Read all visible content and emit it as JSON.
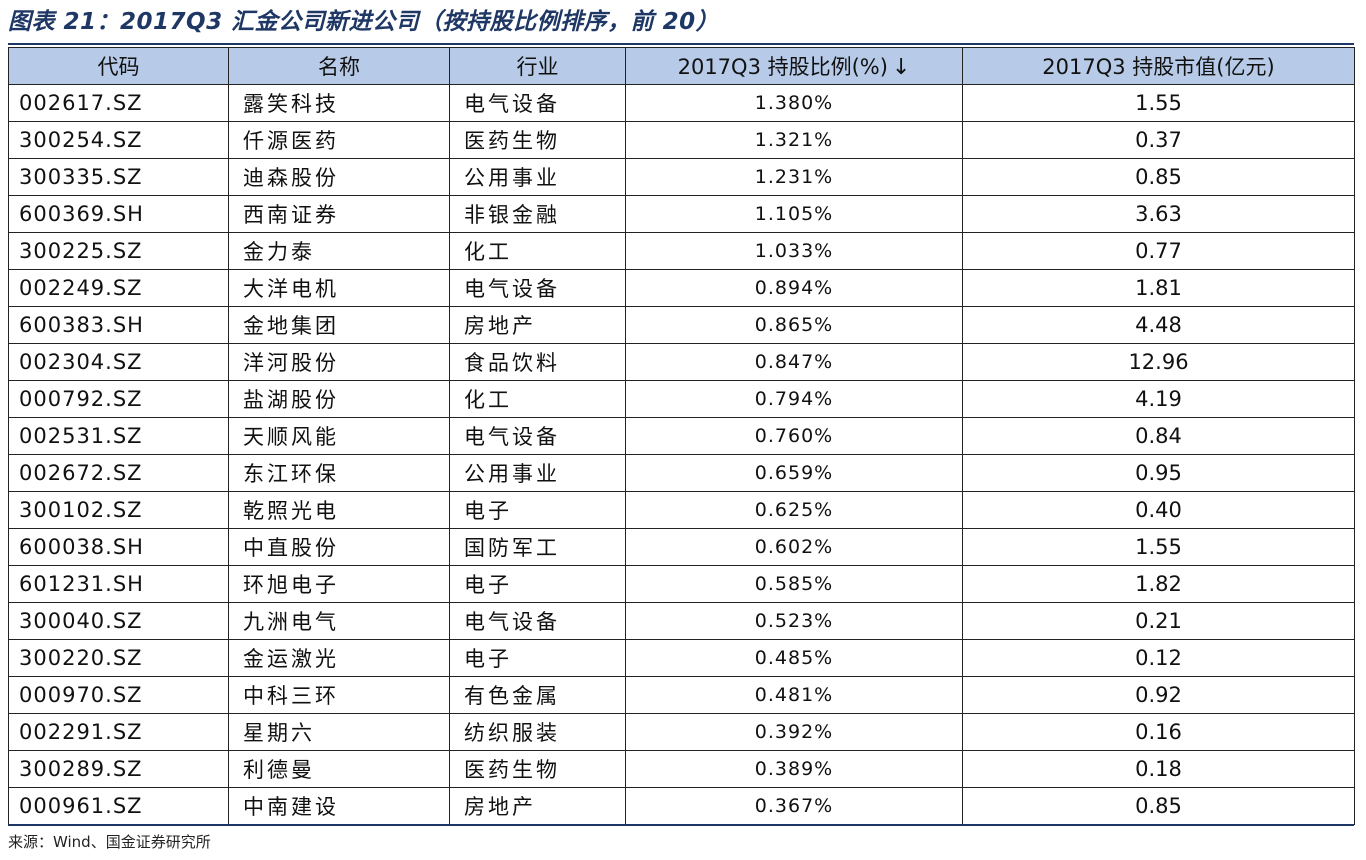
{
  "title": "图表 21：2017Q3 汇金公司新进公司（按持股比例排序，前 20）",
  "table": {
    "headers": [
      "代码",
      "名称",
      "行业",
      "2017Q3 持股比例(%)",
      "2017Q3 持股市值(亿元)"
    ],
    "sort_indicator": "↓",
    "rows": [
      {
        "code": "002617.SZ",
        "name": "露笑科技",
        "industry": "电气设备",
        "pct": "1.380%",
        "value": "1.55"
      },
      {
        "code": "300254.SZ",
        "name": "仟源医药",
        "industry": "医药生物",
        "pct": "1.321%",
        "value": "0.37"
      },
      {
        "code": "300335.SZ",
        "name": "迪森股份",
        "industry": "公用事业",
        "pct": "1.231%",
        "value": "0.85"
      },
      {
        "code": "600369.SH",
        "name": "西南证券",
        "industry": "非银金融",
        "pct": "1.105%",
        "value": "3.63"
      },
      {
        "code": "300225.SZ",
        "name": "金力泰",
        "industry": "化工",
        "pct": "1.033%",
        "value": "0.77"
      },
      {
        "code": "002249.SZ",
        "name": "大洋电机",
        "industry": "电气设备",
        "pct": "0.894%",
        "value": "1.81"
      },
      {
        "code": "600383.SH",
        "name": "金地集团",
        "industry": "房地产",
        "pct": "0.865%",
        "value": "4.48"
      },
      {
        "code": "002304.SZ",
        "name": "洋河股份",
        "industry": "食品饮料",
        "pct": "0.847%",
        "value": "12.96"
      },
      {
        "code": "000792.SZ",
        "name": "盐湖股份",
        "industry": "化工",
        "pct": "0.794%",
        "value": "4.19"
      },
      {
        "code": "002531.SZ",
        "name": "天顺风能",
        "industry": "电气设备",
        "pct": "0.760%",
        "value": "0.84"
      },
      {
        "code": "002672.SZ",
        "name": "东江环保",
        "industry": "公用事业",
        "pct": "0.659%",
        "value": "0.95"
      },
      {
        "code": "300102.SZ",
        "name": "乾照光电",
        "industry": "电子",
        "pct": "0.625%",
        "value": "0.40"
      },
      {
        "code": "600038.SH",
        "name": "中直股份",
        "industry": "国防军工",
        "pct": "0.602%",
        "value": "1.55"
      },
      {
        "code": "601231.SH",
        "name": "环旭电子",
        "industry": "电子",
        "pct": "0.585%",
        "value": "1.82"
      },
      {
        "code": "300040.SZ",
        "name": "九洲电气",
        "industry": "电气设备",
        "pct": "0.523%",
        "value": "0.21"
      },
      {
        "code": "300220.SZ",
        "name": "金运激光",
        "industry": "电子",
        "pct": "0.485%",
        "value": "0.12"
      },
      {
        "code": "000970.SZ",
        "name": "中科三环",
        "industry": "有色金属",
        "pct": "0.481%",
        "value": "0.92"
      },
      {
        "code": "002291.SZ",
        "name": "星期六",
        "industry": "纺织服装",
        "pct": "0.392%",
        "value": "0.16"
      },
      {
        "code": "300289.SZ",
        "name": "利德曼",
        "industry": "医药生物",
        "pct": "0.389%",
        "value": "0.18"
      },
      {
        "code": "000961.SZ",
        "name": "中南建设",
        "industry": "房地产",
        "pct": "0.367%",
        "value": "0.85"
      }
    ]
  },
  "source": "来源：Wind、国金证券研究所",
  "colors": {
    "header_bg": "#b7cbe8",
    "title": "#1f3764"
  }
}
